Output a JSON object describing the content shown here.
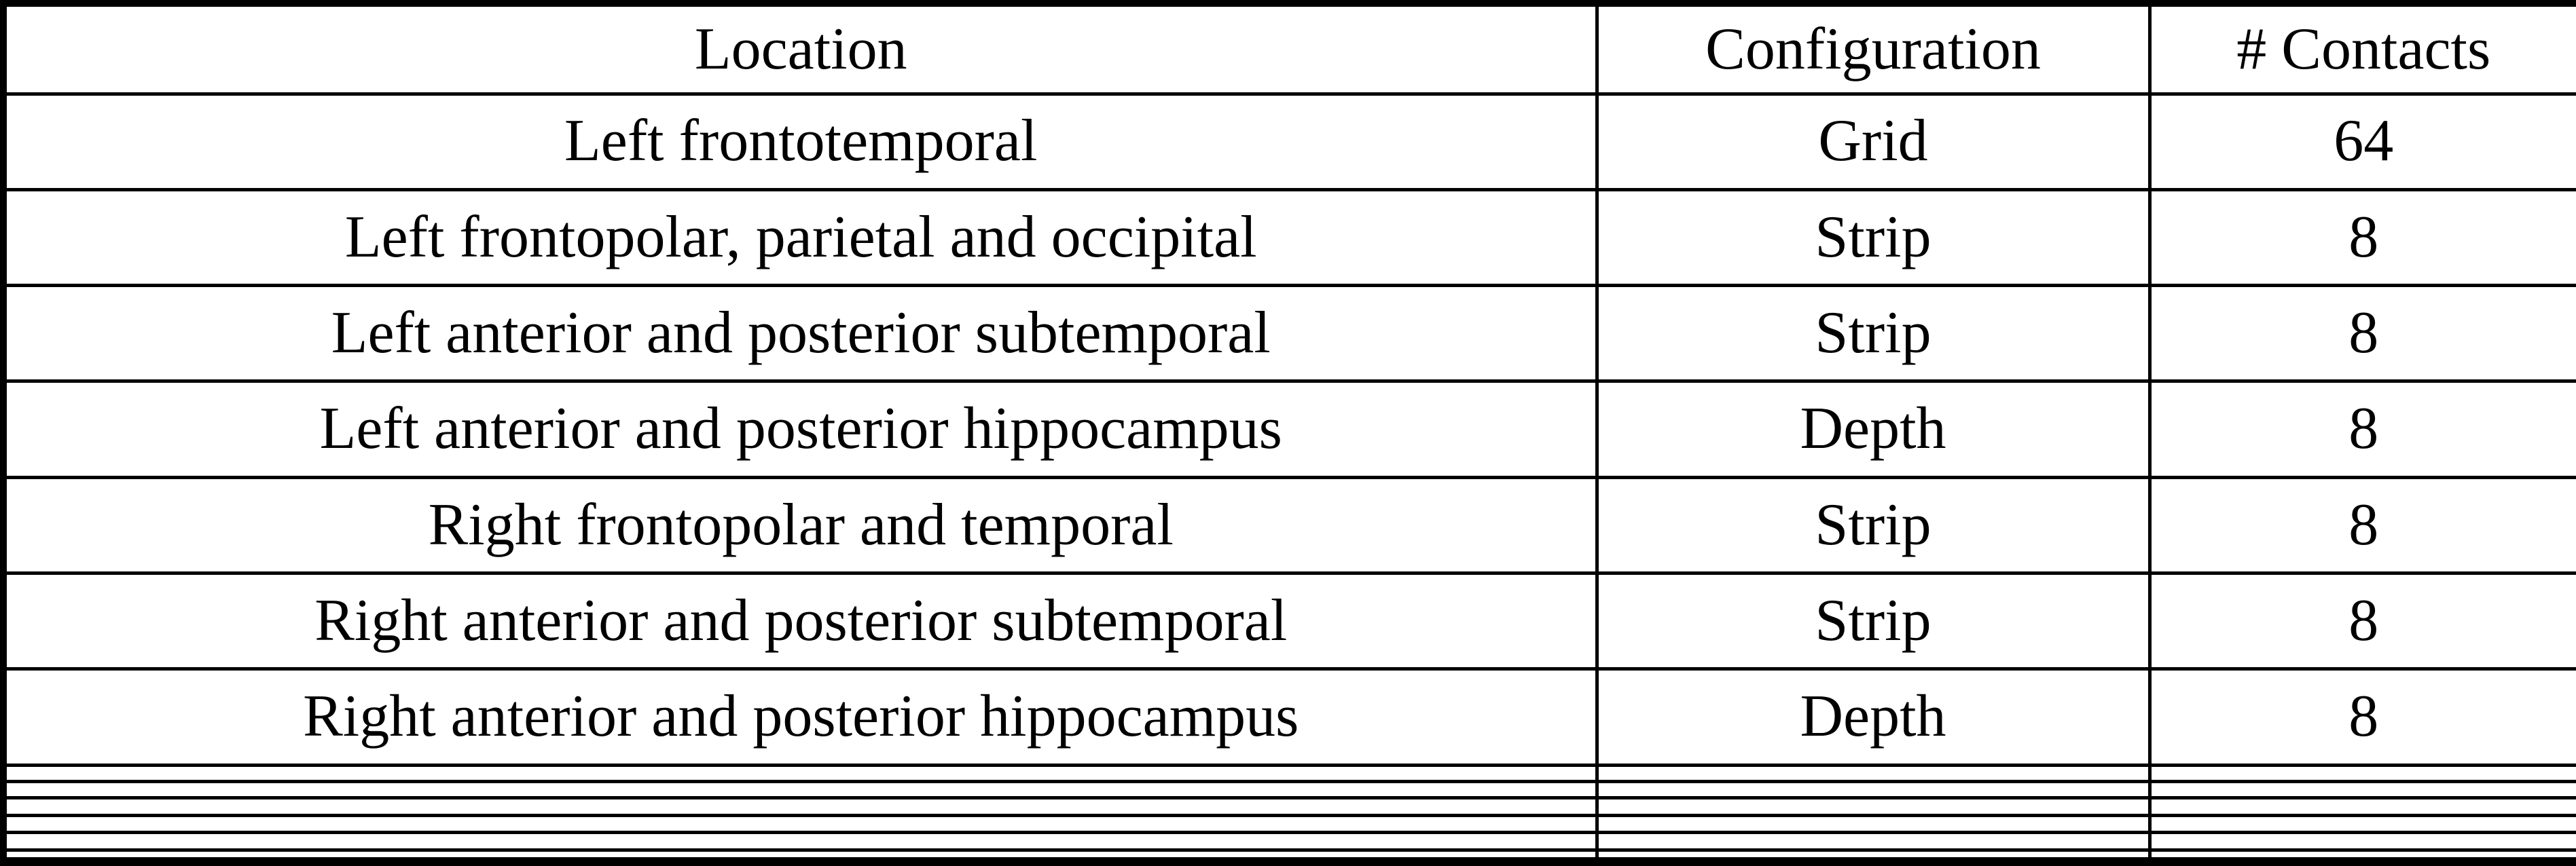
{
  "table": {
    "headers": {
      "location": "Location",
      "configuration": "Configuration",
      "contacts": "# Contacts"
    },
    "rows": [
      {
        "location": "Left frontotemporal",
        "configuration": "Grid",
        "contacts": "64"
      },
      {
        "location": "Left frontopolar, parietal and occipital",
        "configuration": "Strip",
        "contacts": "8"
      },
      {
        "location": "Left anterior and posterior subtemporal",
        "configuration": "Strip",
        "contacts": "8"
      },
      {
        "location": "Left anterior and posterior hippocampus",
        "configuration": "Depth",
        "contacts": "8"
      },
      {
        "location": "Right frontopolar and temporal",
        "configuration": "Strip",
        "contacts": "8"
      },
      {
        "location": "Right anterior and posterior subtemporal",
        "configuration": "Strip",
        "contacts": "8"
      },
      {
        "location": "Right anterior and posterior hippocampus",
        "configuration": "Depth",
        "contacts": "8"
      }
    ],
    "empty_row_count": 6
  },
  "colors": {
    "border": "#000000",
    "text": "#000000",
    "background": "#ffffff"
  },
  "chart_data": {
    "type": "table",
    "columns": [
      "Location",
      "Configuration",
      "# Contacts"
    ],
    "rows": [
      [
        "Left frontotemporal",
        "Grid",
        64
      ],
      [
        "Left frontopolar, parietal and occipital",
        "Strip",
        8
      ],
      [
        "Left anterior and posterior subtemporal",
        "Strip",
        8
      ],
      [
        "Left anterior and posterior hippocampus",
        "Depth",
        8
      ],
      [
        "Right frontopolar and temporal",
        "Strip",
        8
      ],
      [
        "Right anterior and posterior subtemporal",
        "Strip",
        8
      ],
      [
        "Right anterior and posterior hippocampus",
        "Depth",
        8
      ]
    ]
  }
}
